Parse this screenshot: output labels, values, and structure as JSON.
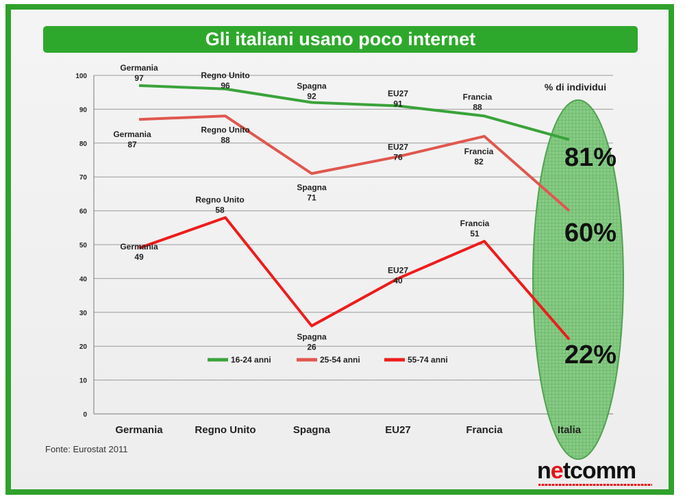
{
  "title": "Gli italiani usano poco internet",
  "source": "Fonte: Eurostat  2011",
  "logo": {
    "prefix": "n",
    "accent": "e",
    "suffix": "tcomm"
  },
  "unit_label": "% di individui",
  "colors": {
    "frame": "#2fa12c",
    "title_bg": "#2ea82c",
    "series_16_24": "#3aa33a",
    "series_25_54": "#e0574f",
    "series_55_74": "#ee1c1c",
    "highlight": "#5bb85a"
  },
  "chart_data": {
    "type": "line",
    "categories": [
      "Germania",
      "Regno Unito",
      "Spagna",
      "EU27",
      "Francia",
      "Italia"
    ],
    "ylim": [
      0,
      100
    ],
    "yticks": [
      0,
      10,
      20,
      30,
      40,
      50,
      60,
      70,
      80,
      90,
      100
    ],
    "grid": true,
    "legend_position": "bottom-center",
    "series": [
      {
        "name": "16-24 anni",
        "values": [
          97,
          96,
          92,
          91,
          88,
          81
        ],
        "point_labels": [
          [
            "Germania",
            "97"
          ],
          [
            "Regno Unito",
            "96"
          ],
          [
            "Spagna",
            "92"
          ],
          [
            "EU27",
            "91"
          ],
          [
            "Francia",
            "88"
          ]
        ]
      },
      {
        "name": "25-54 anni",
        "values": [
          87,
          88,
          71,
          76,
          82,
          60
        ],
        "point_labels": [
          [
            "Germania",
            "87"
          ],
          [
            "Regno Unito",
            "88"
          ],
          [
            "Spagna",
            "71"
          ],
          [
            "EU27",
            "76"
          ],
          [
            "Francia",
            "82"
          ]
        ]
      },
      {
        "name": "55-74 anni",
        "values": [
          49,
          58,
          26,
          40,
          51,
          22
        ],
        "point_labels": [
          [
            "Germania",
            "49"
          ],
          [
            "Regno Unito",
            "58"
          ],
          [
            "Spagna",
            "26"
          ],
          [
            "EU27",
            "40"
          ],
          [
            "Francia",
            "51"
          ]
        ]
      }
    ],
    "highlight_values": [
      "81%",
      "60%",
      "22%"
    ]
  }
}
